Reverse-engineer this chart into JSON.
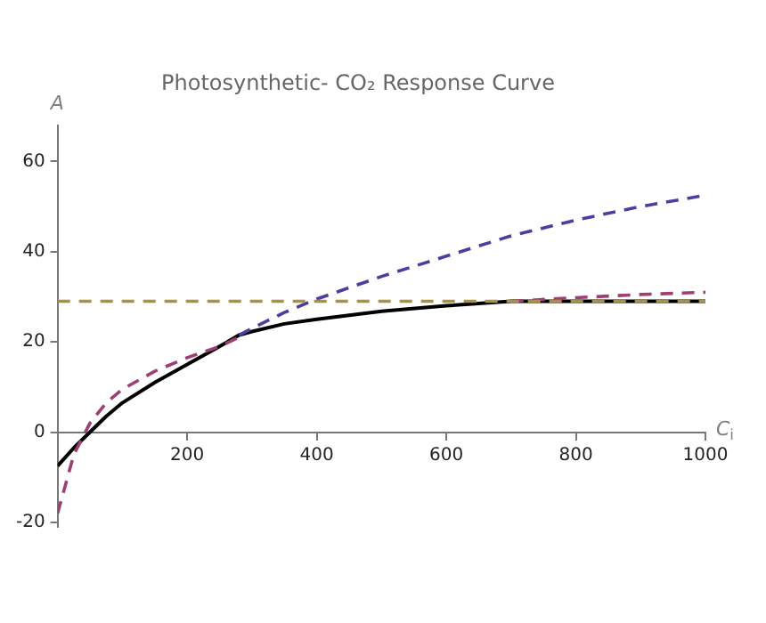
{
  "chart_data": {
    "type": "line",
    "title": "Photosynthetic- CO₂ Response Curve",
    "xlabel": "C$_{i}$",
    "ylabel": "A",
    "x": [
      0,
      25,
      50,
      75,
      100,
      150,
      200,
      250,
      280,
      300,
      350,
      400,
      500,
      600,
      700,
      800,
      900,
      1000
    ],
    "series": [
      {
        "color": "#a8913f",
        "line_style": "dashed",
        "values": [
          29,
          29,
          29,
          29,
          29,
          29,
          29,
          29,
          29,
          29,
          29,
          29,
          29,
          29,
          29,
          29,
          29,
          29
        ]
      },
      {
        "color": "#4a3f9e",
        "line_style": "dashed",
        "values": [
          null,
          null,
          null,
          null,
          null,
          null,
          null,
          null,
          21.5,
          23,
          26.5,
          29.5,
          34.5,
          39,
          43.5,
          47,
          50,
          52.5
        ]
      },
      {
        "color": "#9c3f74",
        "line_style": "dashed",
        "values": [
          -18,
          -5,
          2,
          6.5,
          9.5,
          13.5,
          16.5,
          19,
          21,
          null,
          null,
          null,
          null,
          null,
          29,
          29.8,
          30.5,
          31
        ]
      },
      {
        "color": "#000000",
        "line_style": "solid",
        "values": [
          -7.5,
          -3.5,
          0,
          3.5,
          6.5,
          11,
          15,
          19,
          21.5,
          22.3,
          24,
          25,
          26.8,
          28,
          29,
          29,
          29,
          29
        ]
      }
    ],
    "xlim": [
      0,
      1000
    ],
    "ylim": [
      -21,
      68
    ],
    "xticks": [
      {
        "value": 0,
        "label": null
      },
      200,
      400,
      600,
      800,
      1000
    ],
    "yticks": [
      -20,
      0,
      20,
      40,
      60
    ],
    "grid": false,
    "legend": false,
    "marker": "none"
  }
}
